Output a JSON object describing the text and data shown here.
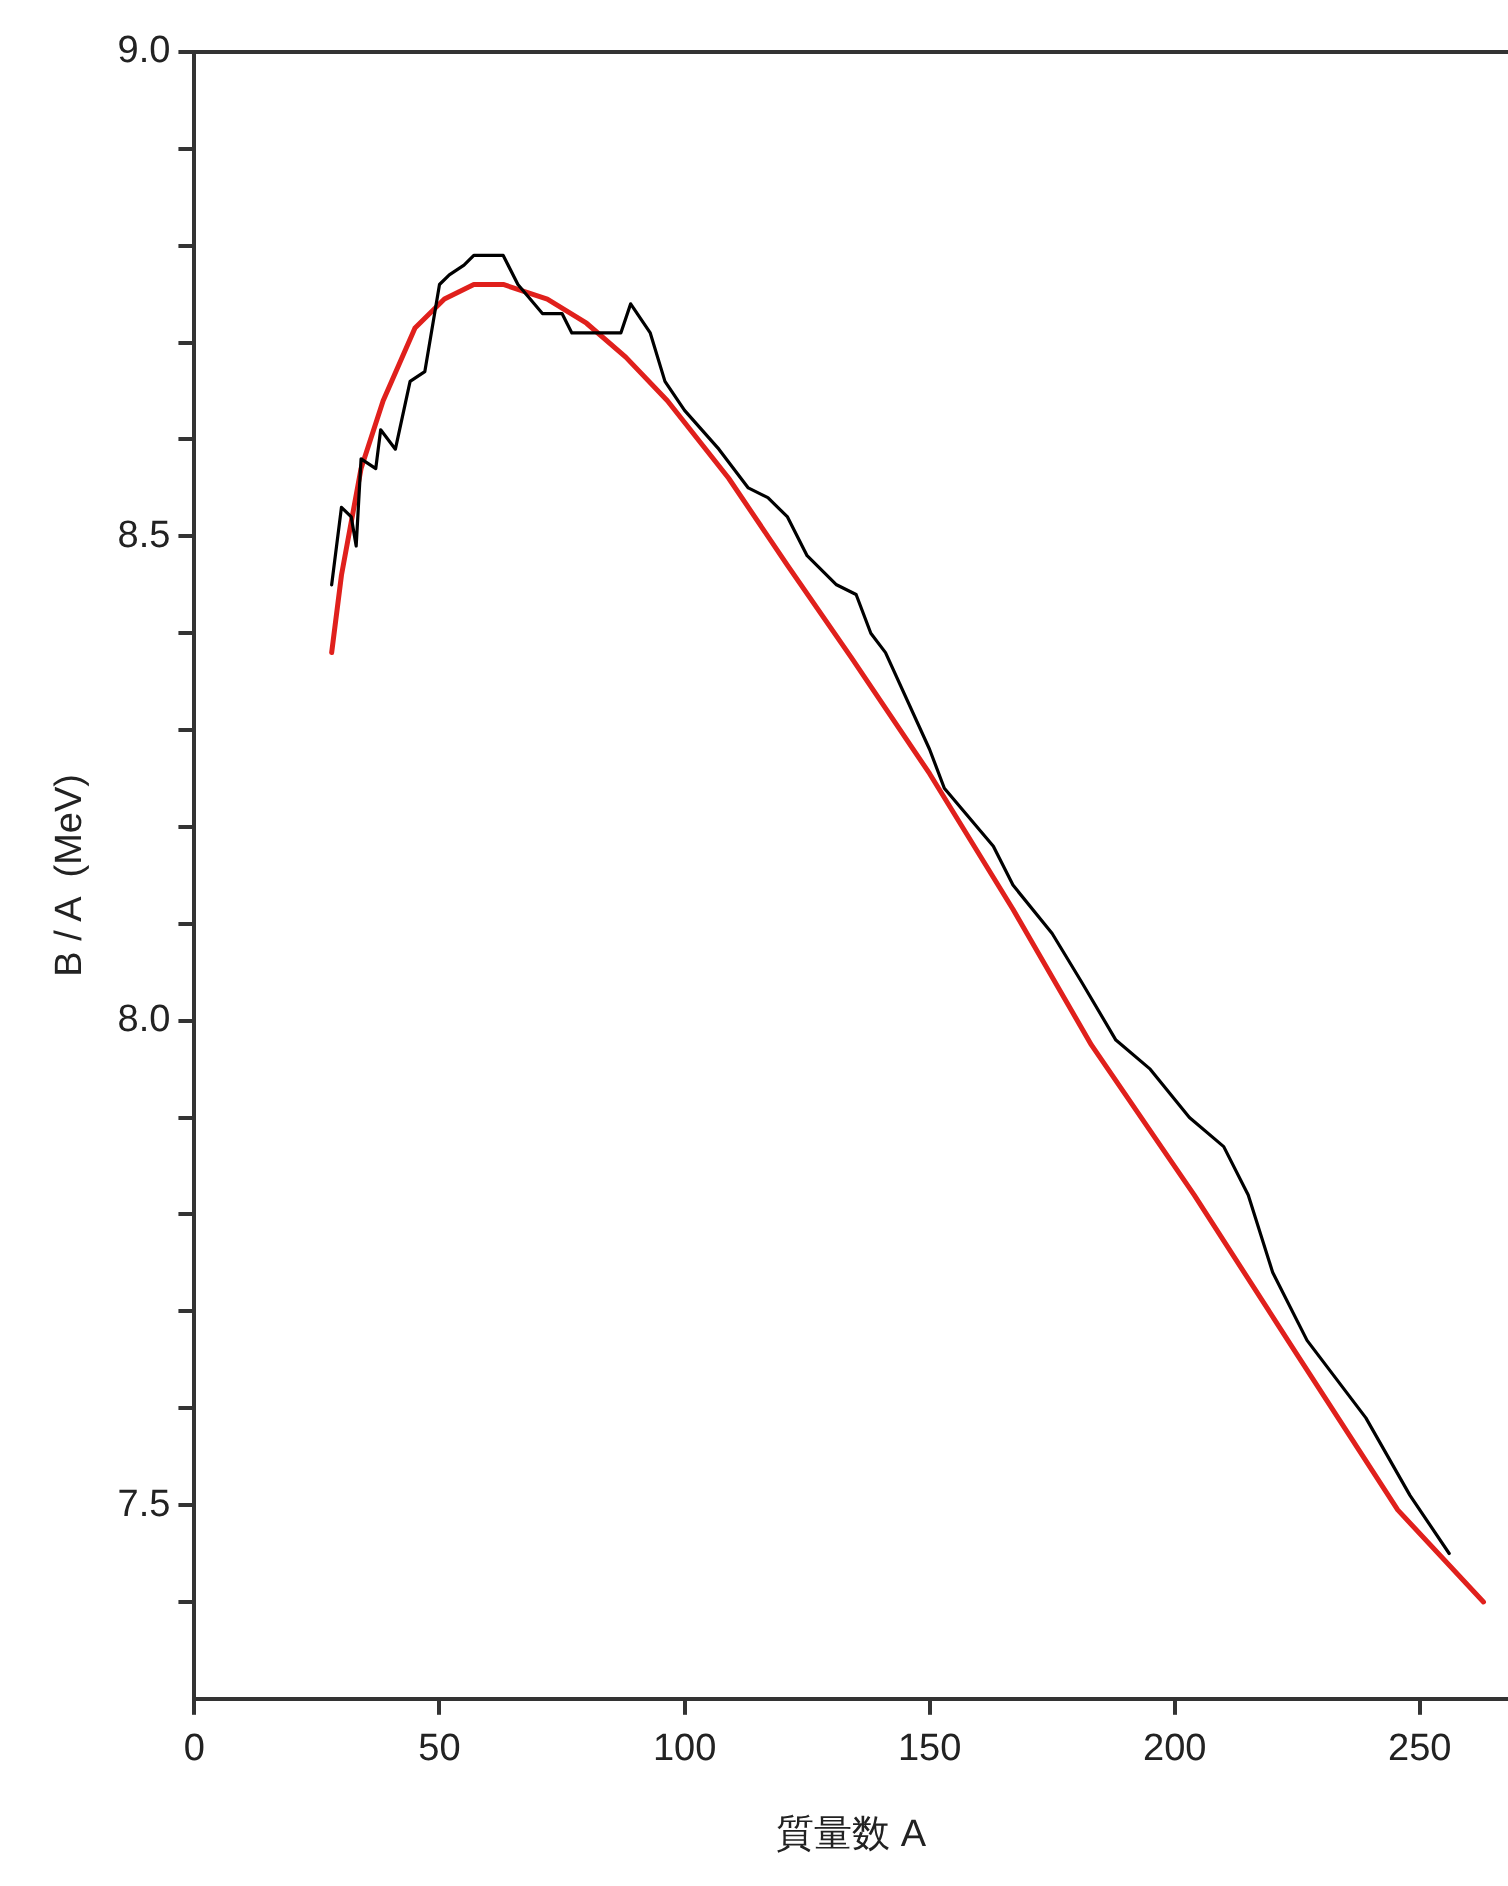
{
  "chart_data": {
    "type": "line",
    "xlabel": "質量数 A",
    "ylabel": "B / A  (MeV)",
    "xlim": [
      0,
      268
    ],
    "xticks": [
      0,
      50,
      100,
      150,
      200,
      250
    ],
    "ylim": [
      7.3,
      9.0
    ],
    "yticks": [
      {
        "value": 7.4,
        "label": null
      },
      {
        "value": 7.5,
        "label": "7.5"
      },
      {
        "value": 7.6,
        "label": null
      },
      {
        "value": 7.7,
        "label": null
      },
      {
        "value": 7.8,
        "label": null
      },
      {
        "value": 7.9,
        "label": null
      },
      {
        "value": 8,
        "label": "8.0"
      },
      {
        "value": 8.1,
        "label": null
      },
      {
        "value": 8.2,
        "label": null
      },
      {
        "value": 8.3,
        "label": null
      },
      {
        "value": 8.4,
        "label": null
      },
      {
        "value": 8.5,
        "label": "8.5"
      },
      {
        "value": 8.6,
        "label": null
      },
      {
        "value": 8.7,
        "label": null
      },
      {
        "value": 8.8,
        "label": null
      },
      {
        "value": 8.9,
        "label": null
      },
      {
        "value": 9,
        "label": "9.0"
      }
    ],
    "grid": false,
    "legend": false,
    "marker": "none",
    "line_style": "solid",
    "series": [
      {
        "color": "#000000",
        "x": [
          28,
          30,
          32,
          33,
          34,
          37,
          38,
          41,
          44,
          47,
          50,
          52,
          55,
          57,
          60,
          63,
          66,
          71,
          75,
          77,
          81,
          85,
          87,
          89,
          93,
          96,
          100,
          107,
          113,
          117,
          121,
          125,
          131,
          135,
          138,
          141,
          150,
          153,
          163,
          167,
          175,
          181,
          188,
          195,
          203,
          210,
          215,
          220,
          227,
          239,
          248,
          256
        ],
        "values": [
          8.45,
          8.53,
          8.52,
          8.49,
          8.58,
          8.57,
          8.61,
          8.59,
          8.66,
          8.67,
          8.76,
          8.77,
          8.78,
          8.79,
          8.79,
          8.79,
          8.76,
          8.73,
          8.73,
          8.71,
          8.71,
          8.71,
          8.71,
          8.74,
          8.71,
          8.66,
          8.63,
          8.59,
          8.55,
          8.54,
          8.52,
          8.48,
          8.45,
          8.44,
          8.4,
          8.38,
          8.28,
          8.24,
          8.18,
          8.14,
          8.09,
          8.04,
          7.98,
          7.95,
          7.9,
          7.87,
          7.82,
          7.74,
          7.67,
          7.59,
          7.51,
          7.45
        ]
      },
      {
        "type": "line",
        "color": "#e0201c",
        "x": [
          28,
          30,
          34,
          38.5,
          45,
          51,
          57,
          63,
          72,
          80,
          88,
          96.5,
          109,
          121,
          134,
          150,
          167,
          183,
          204,
          225,
          245.5,
          263
        ],
        "values": [
          8.38,
          8.46,
          8.57,
          8.64,
          8.715,
          8.745,
          8.76,
          8.76,
          8.745,
          8.72,
          8.685,
          8.64,
          8.56,
          8.47,
          8.375,
          8.255,
          8.115,
          7.975,
          7.82,
          7.655,
          7.495,
          7.4
        ]
      }
    ]
  }
}
